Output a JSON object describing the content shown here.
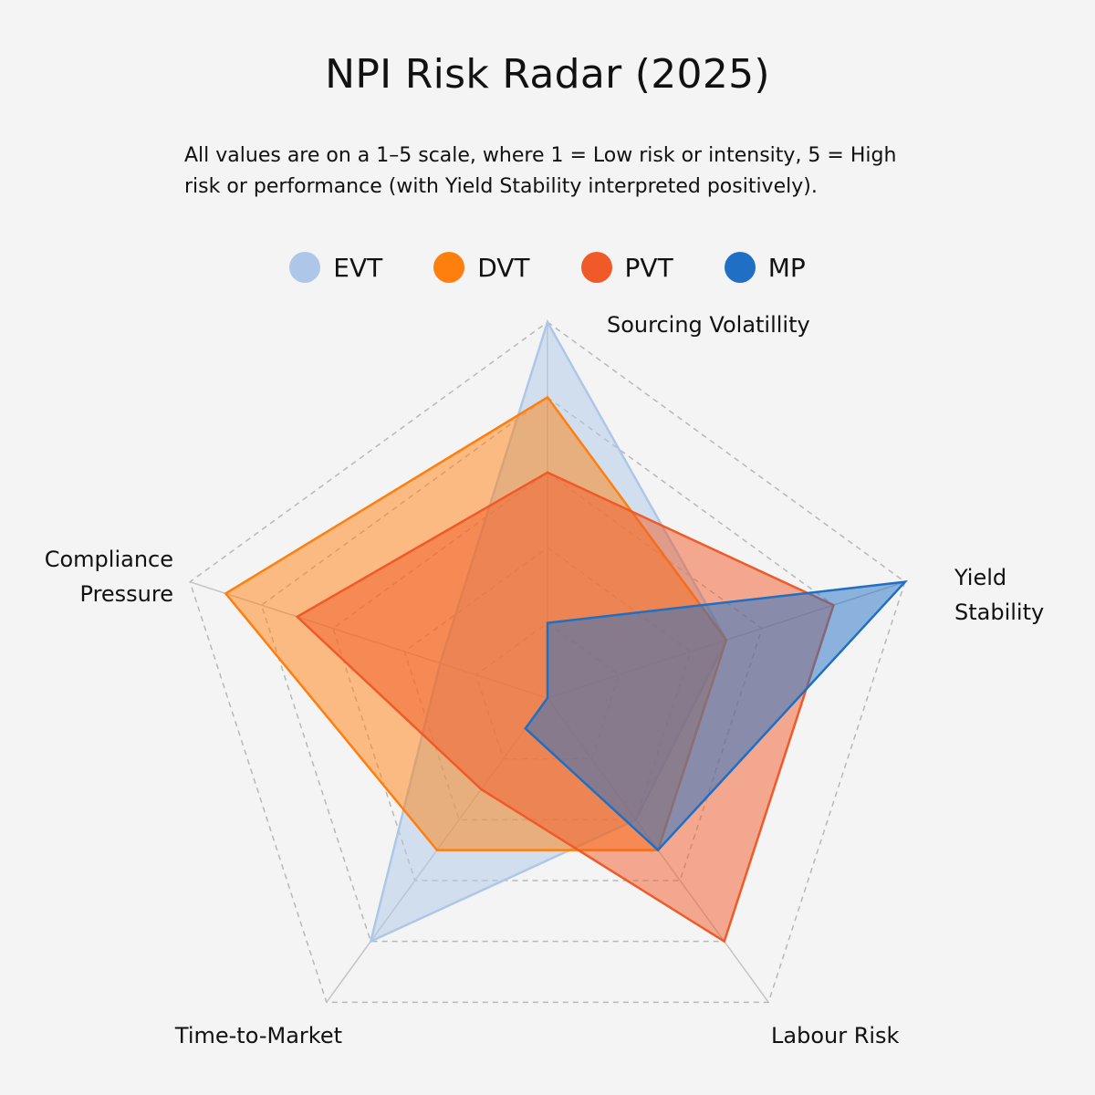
{
  "chart_data": {
    "type": "radar",
    "title": "NPI Risk Radar (2025)",
    "subtitle": "All values are on a 1–5 scale, where 1 = Low risk or intensity, 5 = High risk or performance (with Yield Stability interpreted positively).",
    "axes": [
      "Sourcing Volatillity",
      "Yield Stability",
      "Labour Risk",
      "Time-to-Market",
      "Compliance Pressure"
    ],
    "range": [
      0,
      5
    ],
    "grid_levels": [
      1,
      2,
      3,
      4,
      5
    ],
    "legend_position": "top",
    "series": [
      {
        "name": "EVT",
        "values": [
          5.0,
          2.5,
          2.0,
          4.0,
          1.5
        ],
        "color": "#aec7e8"
      },
      {
        "name": "DVT",
        "values": [
          4.0,
          2.5,
          2.5,
          2.5,
          4.5
        ],
        "color": "#ff7f0e"
      },
      {
        "name": "PVT",
        "values": [
          3.0,
          4.0,
          4.0,
          1.5,
          3.5
        ],
        "color": "#f05a28"
      },
      {
        "name": "MP",
        "values": [
          1.0,
          5.0,
          2.5,
          0.5,
          0.0
        ],
        "color": "#1f6fc5"
      }
    ]
  }
}
